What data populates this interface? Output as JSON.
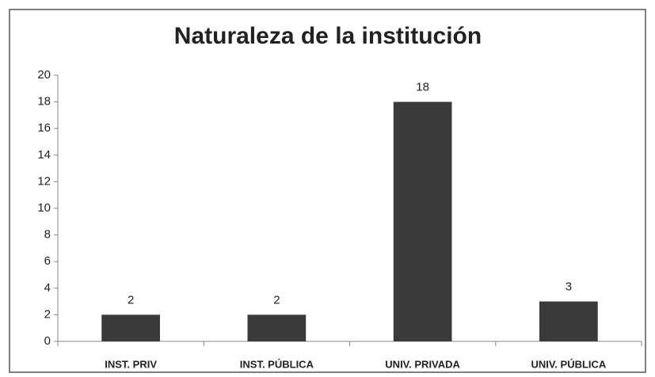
{
  "chart_data": {
    "type": "bar",
    "title": "Naturaleza de la institución",
    "categories": [
      "INST. PRIV",
      "INST. PÚBLICA",
      "UNIV. PRIVADA",
      "UNIV. PÚBLICA"
    ],
    "values": [
      2,
      2,
      18,
      3
    ],
    "color": "#3a3a3a",
    "ylim": [
      0,
      20
    ],
    "yticks": [
      0,
      2,
      4,
      6,
      8,
      10,
      12,
      14,
      16,
      18,
      20
    ],
    "grid": false
  }
}
